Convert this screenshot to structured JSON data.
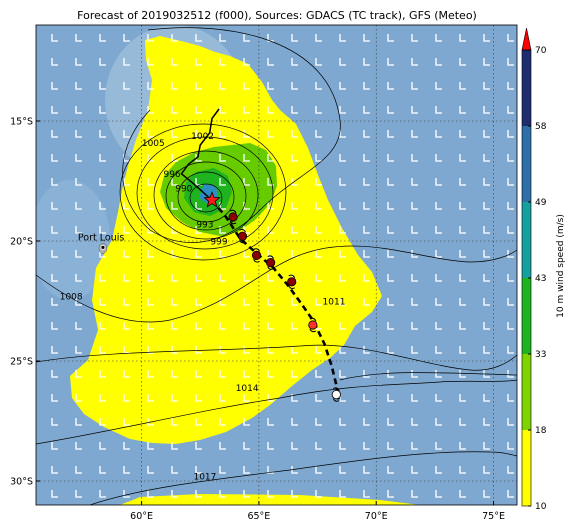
{
  "title": "Forecast of 2019032512 (f000), Sources: GDACS (TC track), GFS (Meteo)",
  "map": {
    "lon_range": [
      55.5,
      76.0
    ],
    "lat_range": [
      -31.0,
      -11.0
    ],
    "lon_ticks": [
      {
        "value": 60,
        "label": "60°E"
      },
      {
        "value": 65,
        "label": "65°E"
      },
      {
        "value": 70,
        "label": "70°E"
      },
      {
        "value": 75,
        "label": "75°E"
      }
    ],
    "lat_ticks": [
      {
        "value": -15,
        "label": "15°S"
      },
      {
        "value": -20,
        "label": "20°S"
      },
      {
        "value": -25,
        "label": "25°S"
      },
      {
        "value": -30,
        "label": "30°S"
      }
    ],
    "grid": "dotted",
    "place": {
      "name": "Port Louis",
      "lon": 57.5,
      "lat": -20.1
    },
    "isobar_labels": [
      {
        "text": "1002",
        "lon": 62.6,
        "lat": -15.7
      },
      {
        "text": "1005",
        "lon": 60.5,
        "lat": -16.0
      },
      {
        "text": "996",
        "lon": 61.3,
        "lat": -17.3
      },
      {
        "text": "990",
        "lon": 61.8,
        "lat": -17.9
      },
      {
        "text": "993",
        "lon": 62.7,
        "lat": -19.4
      },
      {
        "text": "999",
        "lon": 63.3,
        "lat": -20.1
      },
      {
        "text": "1008",
        "lon": 57.0,
        "lat": -22.4
      },
      {
        "text": "1011",
        "lon": 68.2,
        "lat": -22.6
      },
      {
        "text": "1014",
        "lon": 64.5,
        "lat": -26.2
      },
      {
        "text": "1017",
        "lon": 62.7,
        "lat": -29.9
      }
    ],
    "storm_center": {
      "lon": 63.0,
      "lat": -18.3
    },
    "past_track": [
      [
        63.3,
        -14.5
      ],
      [
        63.0,
        -14.9
      ],
      [
        62.9,
        -15.5
      ],
      [
        62.5,
        -16.0
      ],
      [
        62.4,
        -16.5
      ],
      [
        62.0,
        -16.8
      ],
      [
        61.7,
        -17.2
      ],
      [
        62.2,
        -17.6
      ],
      [
        63.0,
        -18.3
      ]
    ],
    "forecast_track": [
      [
        63.0,
        -18.3
      ],
      [
        63.6,
        -19.0
      ],
      [
        64.2,
        -19.9
      ],
      [
        65.0,
        -20.6
      ],
      [
        65.6,
        -21.1
      ],
      [
        66.2,
        -21.8
      ],
      [
        66.8,
        -22.6
      ],
      [
        67.3,
        -23.3
      ],
      [
        67.8,
        -24.3
      ],
      [
        68.1,
        -25.2
      ],
      [
        68.3,
        -26.0
      ],
      [
        68.4,
        -26.6
      ]
    ],
    "forecast_points": [
      {
        "lon": 63.9,
        "lat": -19.0,
        "color": "#8b0000"
      },
      {
        "lon": 64.3,
        "lat": -19.8,
        "color": "#8b0000"
      },
      {
        "lon": 64.9,
        "lat": -20.6,
        "color": "#8b0000"
      },
      {
        "lon": 65.5,
        "lat": -20.9,
        "color": "#8b0000"
      },
      {
        "lon": 66.4,
        "lat": -21.7,
        "color": "#8b0000"
      },
      {
        "lon": 67.3,
        "lat": -23.5,
        "color": "#ff3030"
      },
      {
        "lon": 68.3,
        "lat": -26.4,
        "color": "#ffffff"
      }
    ]
  },
  "colorbar": {
    "label": "10 m wind speed (m/s)",
    "ticks": [
      "10",
      "18",
      "33",
      "43",
      "49",
      "58",
      "70"
    ],
    "colors": [
      "#ffff00",
      "#7fd400",
      "#1fb31f",
      "#15a0a0",
      "#2f6fa8",
      "#1f2d6e"
    ],
    "extend_color": "#ff0000"
  }
}
